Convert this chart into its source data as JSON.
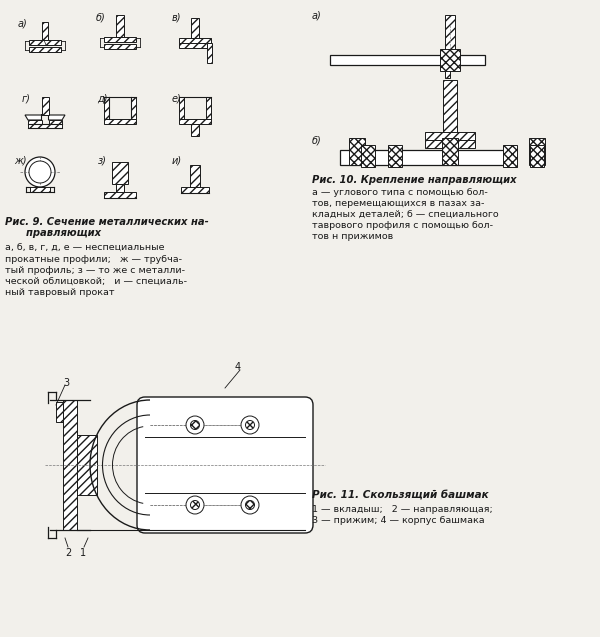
{
  "fig9_title": "Рис. 9. Сечение металлических на-\n       правляющих",
  "fig9_caption": "а, б, в, г, д, е — неспециальные\nпрокатные профили;   ж — трубча-\nтый профиль; з — то же с металли-\nческой облицовкой;   и — специаль-\nный тавровый прокат",
  "fig10_title": "Рис. 10. Крепление направляющих",
  "fig10_caption": "а — углового типа с помощью бол-\nтов, перемещающихся в пазах за-\nкладных деталей; б — специального\nтаврового профиля с помощью бол-\nтов н прижимов",
  "fig11_title": "Рис. 11. Скользящий башмак",
  "fig11_caption": "1 — вкладыш;   2 — направляющая;\n3 — прижим; 4 — корпус башмака",
  "bg_color": "#f2f0eb"
}
